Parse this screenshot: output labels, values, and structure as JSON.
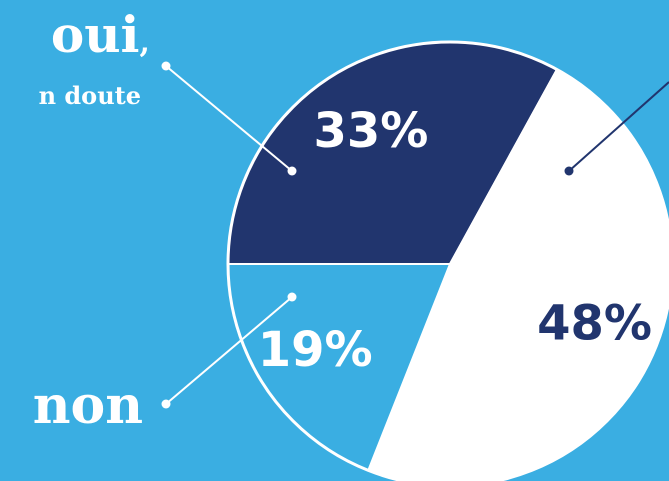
{
  "labels": {
    "oui": "oui",
    "oui_comma": ",",
    "oui_sub": "n doute",
    "non": "non"
  },
  "colors": {
    "background": "#3aaee2",
    "dark": "#21356e",
    "white": "#ffffff",
    "light": "#3aaee2"
  },
  "chart_data": {
    "type": "pie",
    "categories": [
      "oui",
      "",
      "non"
    ],
    "values": [
      33,
      48,
      19
    ],
    "value_labels": [
      "33%",
      "48%",
      "19%"
    ],
    "slice_colors": [
      "#21356e",
      "#ffffff",
      "#3aaee2"
    ],
    "title": "",
    "legend": "none"
  }
}
